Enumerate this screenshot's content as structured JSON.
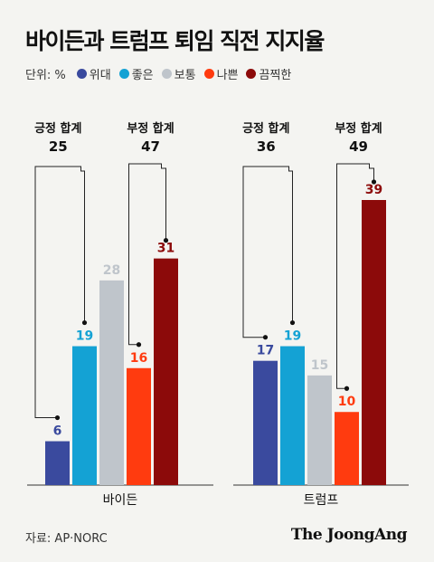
{
  "title": "바이든과 트럼프 퇴임 직전 지지율",
  "legend": {
    "unit": "단위: %",
    "items": [
      {
        "label": "위대",
        "color": "#3a4a9e"
      },
      {
        "label": "좋은",
        "color": "#14a2d4"
      },
      {
        "label": "보통",
        "color": "#bfc5cb"
      },
      {
        "label": "나쁜",
        "color": "#ff3b0f"
      },
      {
        "label": "끔찍한",
        "color": "#8c0a0a"
      }
    ]
  },
  "chart_data": {
    "type": "bar",
    "categories": [
      "위대",
      "좋은",
      "보통",
      "나쁜",
      "끔찍한"
    ],
    "ylim": [
      0,
      39
    ],
    "groups": [
      {
        "name": "바이든",
        "values": [
          6,
          19,
          28,
          16,
          31
        ],
        "positive_label": "긍정 합계",
        "positive_total": 25,
        "negative_label": "부정 합계",
        "negative_total": 47
      },
      {
        "name": "트럼프",
        "values": [
          17,
          19,
          15,
          10,
          39
        ],
        "positive_label": "긍정 합계",
        "positive_total": 36,
        "negative_label": "부정 합계",
        "negative_total": 49
      }
    ]
  },
  "source": "자료: AP·NORC",
  "brand": "The JoongAng"
}
